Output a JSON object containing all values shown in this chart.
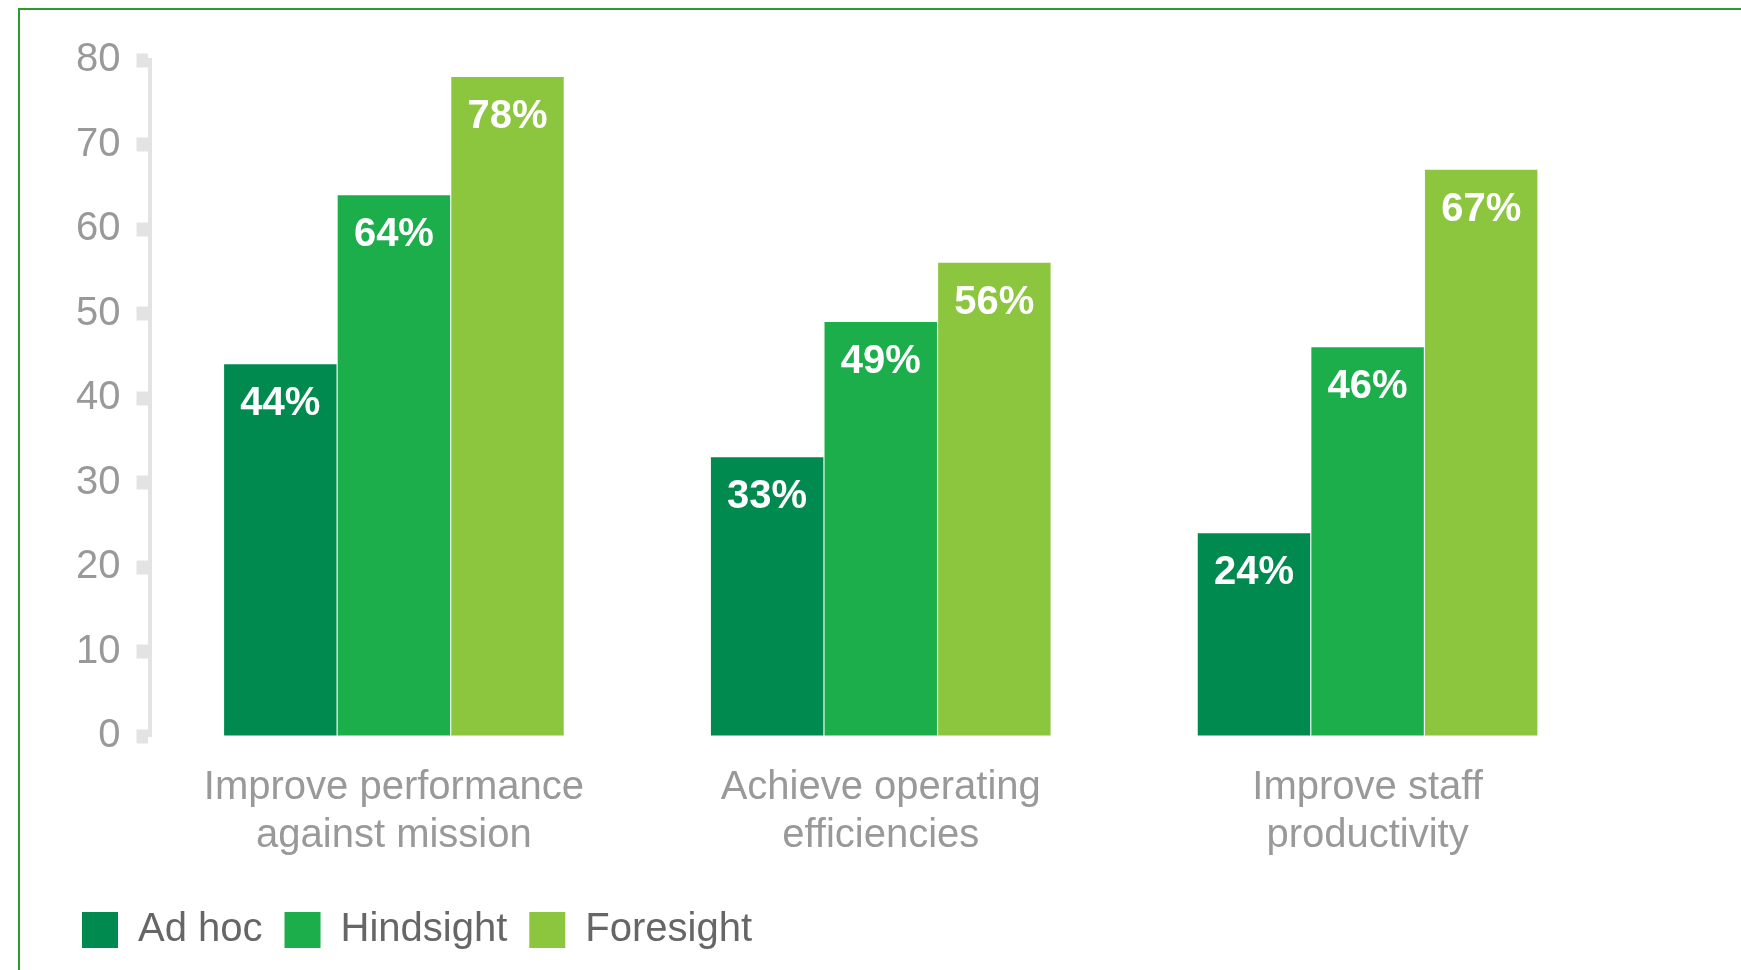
{
  "chart_data": {
    "type": "bar",
    "categories": [
      "Improve performance against mission",
      "Achieve operating efficiencies",
      "Improve staff productivity"
    ],
    "series": [
      {
        "name": "Ad hoc",
        "color": "#008a50",
        "values": [
          44,
          33,
          24
        ],
        "value_labels": [
          "44%",
          "33%",
          "24%"
        ]
      },
      {
        "name": "Hindsight",
        "color": "#1bae4b",
        "values": [
          64,
          49,
          46
        ],
        "value_labels": [
          "64%",
          "49%",
          "46%"
        ]
      },
      {
        "name": "Foresight",
        "color": "#8cc63f",
        "values": [
          78,
          56,
          67
        ],
        "value_labels": [
          "78%",
          "56%",
          "67%"
        ]
      }
    ],
    "ylim": [
      0,
      80
    ],
    "yticks": [
      0,
      10,
      20,
      30,
      40,
      50,
      60,
      70,
      80
    ],
    "grid": false,
    "legend": "bottom left"
  }
}
